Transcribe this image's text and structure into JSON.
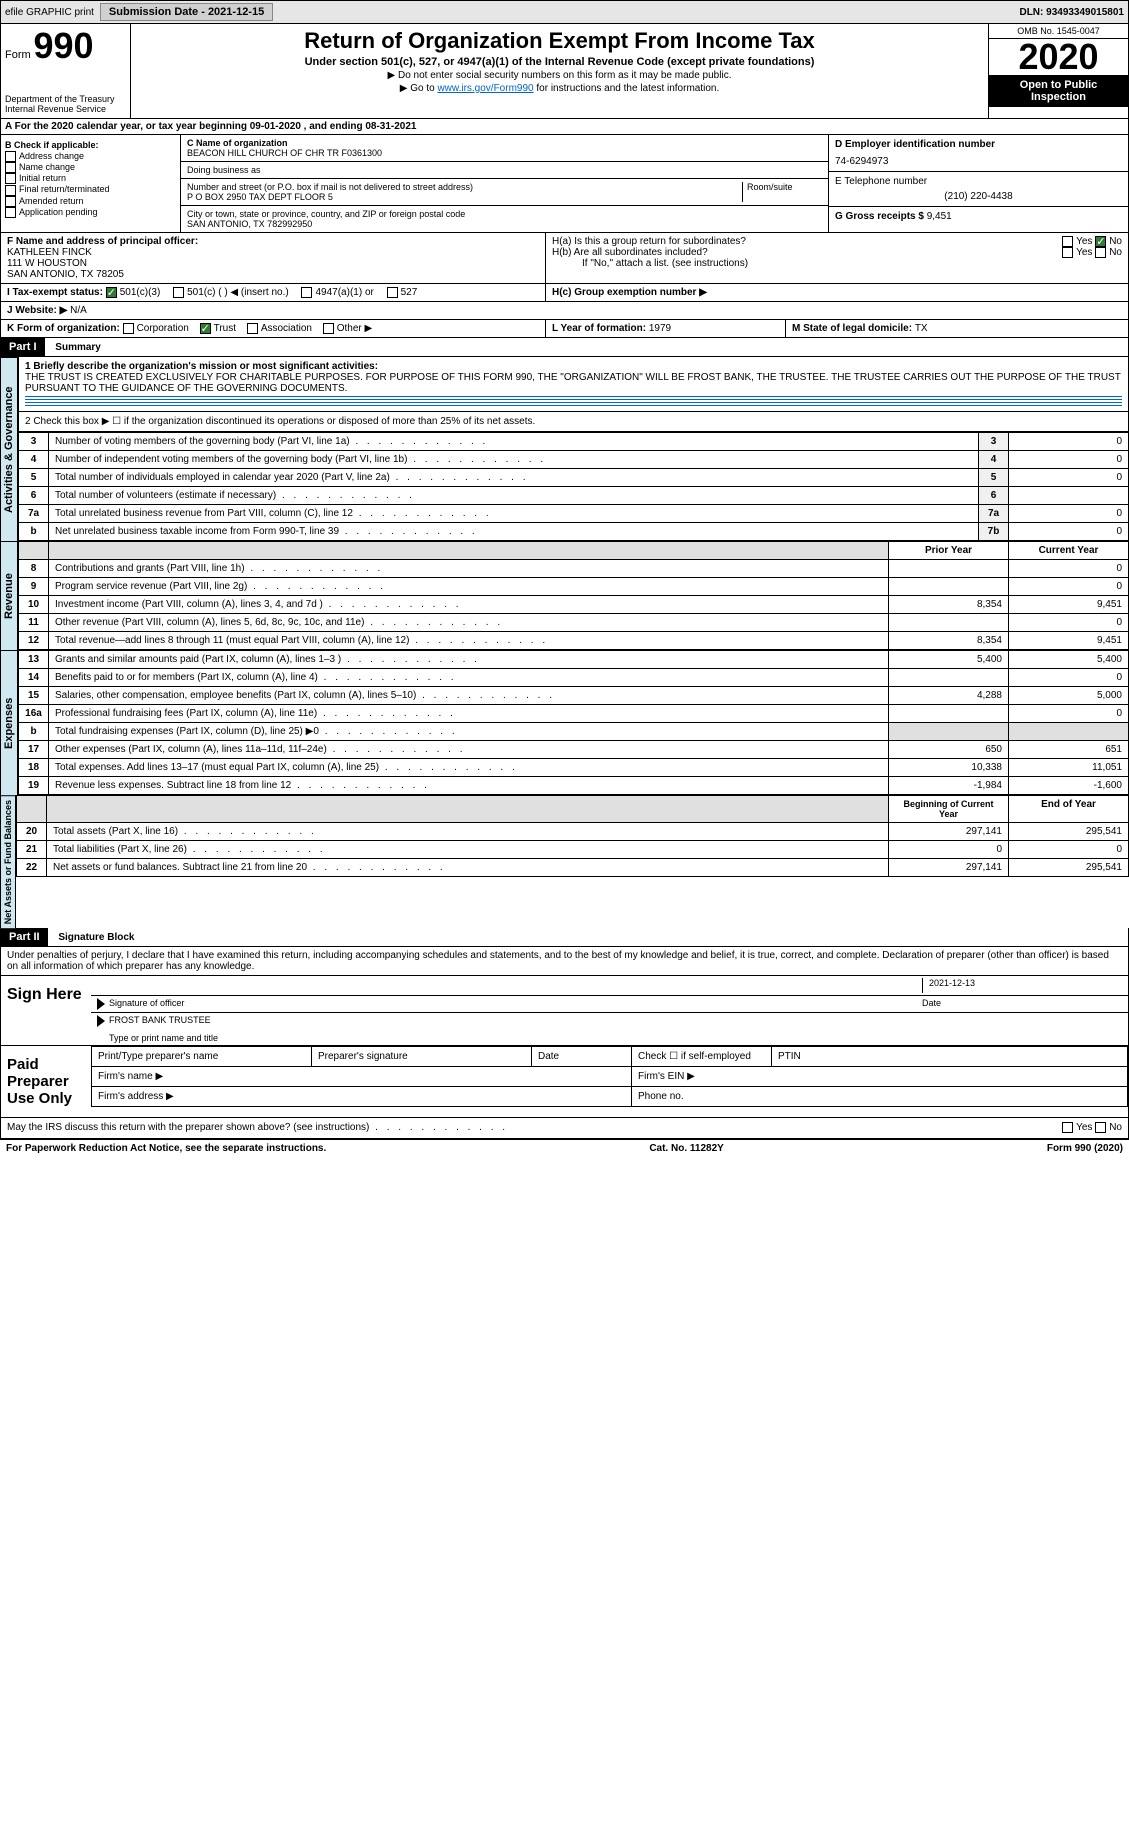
{
  "topbar": {
    "efile": "efile GRAPHIC print",
    "submission_label": "Submission Date - 2021-12-15",
    "dln": "DLN: 93493349015801"
  },
  "header": {
    "form_word": "Form",
    "form_number": "990",
    "dept": "Department of the Treasury\nInternal Revenue Service",
    "title": "Return of Organization Exempt From Income Tax",
    "subtitle1": "Under section 501(c), 527, or 4947(a)(1) of the Internal Revenue Code (except private foundations)",
    "subtitle2a": "▶ Do not enter social security numbers on this form as it may be made public.",
    "subtitle2b": "▶ Go to ",
    "link": "www.irs.gov/Form990",
    "subtitle2c": " for instructions and the latest information.",
    "omb": "OMB No. 1545-0047",
    "year": "2020",
    "inspect": "Open to Public Inspection"
  },
  "period": {
    "text_a": "A For the 2020 calendar year, or tax year beginning ",
    "begin": "09-01-2020",
    "text_b": " , and ending ",
    "end": "08-31-2021"
  },
  "boxB": {
    "label": "B Check if applicable:",
    "items": [
      "Address change",
      "Name change",
      "Initial return",
      "Final return/terminated",
      "Amended return",
      "Application pending"
    ]
  },
  "boxC": {
    "name_label": "C Name of organization",
    "name": "BEACON HILL CHURCH OF CHR TR F0361300",
    "dba_label": "Doing business as",
    "addr_label": "Number and street (or P.O. box if mail is not delivered to street address)",
    "room_label": "Room/suite",
    "addr": "P O BOX 2950 TAX DEPT FLOOR 5",
    "city_label": "City or town, state or province, country, and ZIP or foreign postal code",
    "city": "SAN ANTONIO, TX  782992950"
  },
  "boxD": {
    "label": "D Employer identification number",
    "value": "74-6294973"
  },
  "boxE": {
    "label": "E Telephone number",
    "value": "(210) 220-4438"
  },
  "boxG": {
    "label": "G Gross receipts $ ",
    "value": "9,451"
  },
  "boxF": {
    "label": "F Name and address of principal officer:",
    "name": "KATHLEEN FINCK",
    "addr1": "111 W HOUSTON",
    "addr2": "SAN ANTONIO, TX  78205"
  },
  "boxH": {
    "a": "H(a)  Is this a group return for subordinates?",
    "b": "H(b)  Are all subordinates included?",
    "note": "If \"No,\" attach a list. (see instructions)",
    "c": "H(c)  Group exemption number ▶",
    "yes": "Yes",
    "no": "No"
  },
  "boxI": {
    "label": "I  Tax-exempt status:",
    "opts": [
      "501(c)(3)",
      "501(c) (  ) ◀ (insert no.)",
      "4947(a)(1) or",
      "527"
    ]
  },
  "boxJ": {
    "label": "J  Website: ▶",
    "value": "N/A"
  },
  "boxK": {
    "label": "K Form of organization:",
    "opts": [
      "Corporation",
      "Trust",
      "Association",
      "Other ▶"
    ]
  },
  "boxL": {
    "label": "L Year of formation: ",
    "value": "1979"
  },
  "boxM": {
    "label": "M State of legal domicile: ",
    "value": "TX"
  },
  "part1": {
    "header": "Part I",
    "title": "Summary",
    "line1_label": "1  Briefly describe the organization's mission or most significant activities:",
    "line1_text": "THE TRUST IS CREATED EXCLUSIVELY FOR CHARITABLE PURPOSES. FOR PURPOSE OF THIS FORM 990, THE \"ORGANIZATION\" WILL BE FROST BANK, THE TRUSTEE. THE TRUSTEE CARRIES OUT THE PURPOSE OF THE TRUST PURSUANT TO THE GUIDANCE OF THE GOVERNING DOCUMENTS.",
    "line2": "2  Check this box ▶ ☐ if the organization discontinued its operations or disposed of more than 25% of its net assets.",
    "sidebar_ag": "Activities & Governance",
    "sidebar_rev": "Revenue",
    "sidebar_exp": "Expenses",
    "sidebar_net": "Net Assets or Fund Balances",
    "prior_year": "Prior Year",
    "current_year": "Current Year",
    "begin_year": "Beginning of Current Year",
    "end_year": "End of Year",
    "rows_ag": [
      {
        "n": "3",
        "t": "Number of voting members of the governing body (Part VI, line 1a)",
        "r": "3",
        "v": "0"
      },
      {
        "n": "4",
        "t": "Number of independent voting members of the governing body (Part VI, line 1b)",
        "r": "4",
        "v": "0"
      },
      {
        "n": "5",
        "t": "Total number of individuals employed in calendar year 2020 (Part V, line 2a)",
        "r": "5",
        "v": "0"
      },
      {
        "n": "6",
        "t": "Total number of volunteers (estimate if necessary)",
        "r": "6",
        "v": ""
      },
      {
        "n": "7a",
        "t": "Total unrelated business revenue from Part VIII, column (C), line 12",
        "r": "7a",
        "v": "0"
      },
      {
        "n": "b",
        "t": "Net unrelated business taxable income from Form 990-T, line 39",
        "r": "7b",
        "v": "0"
      }
    ],
    "rows_rev": [
      {
        "n": "8",
        "t": "Contributions and grants (Part VIII, line 1h)",
        "p": "",
        "c": "0"
      },
      {
        "n": "9",
        "t": "Program service revenue (Part VIII, line 2g)",
        "p": "",
        "c": "0"
      },
      {
        "n": "10",
        "t": "Investment income (Part VIII, column (A), lines 3, 4, and 7d )",
        "p": "8,354",
        "c": "9,451"
      },
      {
        "n": "11",
        "t": "Other revenue (Part VIII, column (A), lines 5, 6d, 8c, 9c, 10c, and 11e)",
        "p": "",
        "c": "0"
      },
      {
        "n": "12",
        "t": "Total revenue—add lines 8 through 11 (must equal Part VIII, column (A), line 12)",
        "p": "8,354",
        "c": "9,451"
      }
    ],
    "rows_exp": [
      {
        "n": "13",
        "t": "Grants and similar amounts paid (Part IX, column (A), lines 1–3 )",
        "p": "5,400",
        "c": "5,400"
      },
      {
        "n": "14",
        "t": "Benefits paid to or for members (Part IX, column (A), line 4)",
        "p": "",
        "c": "0"
      },
      {
        "n": "15",
        "t": "Salaries, other compensation, employee benefits (Part IX, column (A), lines 5–10)",
        "p": "4,288",
        "c": "5,000"
      },
      {
        "n": "16a",
        "t": "Professional fundraising fees (Part IX, column (A), line 11e)",
        "p": "",
        "c": "0"
      },
      {
        "n": "b",
        "t": "Total fundraising expenses (Part IX, column (D), line 25) ▶0",
        "p": "",
        "c": ""
      },
      {
        "n": "17",
        "t": "Other expenses (Part IX, column (A), lines 11a–11d, 11f–24e)",
        "p": "650",
        "c": "651"
      },
      {
        "n": "18",
        "t": "Total expenses. Add lines 13–17 (must equal Part IX, column (A), line 25)",
        "p": "10,338",
        "c": "11,051"
      },
      {
        "n": "19",
        "t": "Revenue less expenses. Subtract line 18 from line 12",
        "p": "-1,984",
        "c": "-1,600"
      }
    ],
    "rows_net": [
      {
        "n": "20",
        "t": "Total assets (Part X, line 16)",
        "p": "297,141",
        "c": "295,541"
      },
      {
        "n": "21",
        "t": "Total liabilities (Part X, line 26)",
        "p": "0",
        "c": "0"
      },
      {
        "n": "22",
        "t": "Net assets or fund balances. Subtract line 21 from line 20",
        "p": "297,141",
        "c": "295,541"
      }
    ]
  },
  "part2": {
    "header": "Part II",
    "title": "Signature Block",
    "penalties": "Under penalties of perjury, I declare that I have examined this return, including accompanying schedules and statements, and to the best of my knowledge and belief, it is true, correct, and complete. Declaration of preparer (other than officer) is based on all information of which preparer has any knowledge.",
    "sign_here": "Sign Here",
    "sig_officer": "Signature of officer",
    "date": "Date",
    "sig_date": "2021-12-13",
    "name_title": "FROST BANK TRUSTEE",
    "type_name": "Type or print name and title",
    "paid": "Paid Preparer Use Only",
    "prep_name": "Print/Type preparer's name",
    "prep_sig": "Preparer's signature",
    "prep_date": "Date",
    "check_self": "Check ☐ if self-employed",
    "ptin": "PTIN",
    "firm_name": "Firm's name  ▶",
    "firm_ein": "Firm's EIN ▶",
    "firm_addr": "Firm's address ▶",
    "phone": "Phone no.",
    "may_irs": "May the IRS discuss this return with the preparer shown above? (see instructions)"
  },
  "footer": {
    "left": "For Paperwork Reduction Act Notice, see the separate instructions.",
    "mid": "Cat. No. 11282Y",
    "right": "Form 990 (2020)"
  }
}
